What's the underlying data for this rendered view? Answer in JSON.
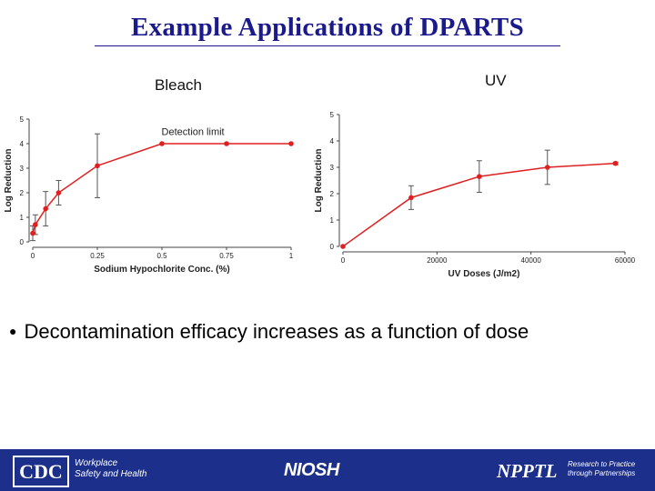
{
  "title": "Example Applications of DPARTS",
  "panels": {
    "bleach_label": "Bleach",
    "uv_label": "UV"
  },
  "bullet": "Decontamination efficacy increases as a function of dose",
  "footer": {
    "cdc": "CDC",
    "cdc_sub_line1": "Workplace",
    "cdc_sub_line2": "Safety and Health",
    "niosh": "NIOSH",
    "npptl": "NPPTL",
    "npptl_sub_line1": "Research to Practice",
    "npptl_sub_line2": "through Partnerships"
  },
  "colors": {
    "title": "#1a1a8c",
    "series": "#e02020",
    "errorbar": "#555555",
    "footer_bg": "#1c2f8a"
  },
  "chart_data": [
    {
      "type": "line",
      "title": "Bleach",
      "xlabel": "Sodium Hypochlorite Conc. (%)",
      "ylabel": "Log Reduction",
      "xlim": [
        0,
        1
      ],
      "ylim": [
        0,
        5
      ],
      "xticks": [
        0,
        0.25,
        0.5,
        0.75,
        1
      ],
      "xtick_labels": [
        "0",
        "0.25",
        "0.5",
        "0.75",
        "1"
      ],
      "yticks": [
        0,
        1,
        2,
        3,
        4,
        5
      ],
      "grid": false,
      "annotation": "Detection limit",
      "series": [
        {
          "x": [
            0,
            0.01,
            0.05,
            0.1,
            0.25,
            0.5,
            0.75,
            1
          ],
          "y": [
            0.35,
            0.7,
            1.35,
            2.0,
            3.1,
            4.0,
            4.0,
            4.0
          ],
          "err": [
            0.3,
            0.4,
            0.7,
            0.5,
            1.3,
            0,
            0,
            0
          ]
        }
      ]
    },
    {
      "type": "line",
      "title": "UV",
      "xlabel": "UV Doses (J/m2)",
      "ylabel": "Log Reduction",
      "xlim": [
        0,
        60000
      ],
      "ylim": [
        0,
        5
      ],
      "xticks": [
        0,
        20000,
        40000,
        60000
      ],
      "xtick_labels": [
        "0",
        "20000",
        "40000",
        "60000"
      ],
      "yticks": [
        0,
        1,
        2,
        3,
        4,
        5
      ],
      "grid": false,
      "series": [
        {
          "x": [
            0,
            14500,
            29000,
            43500,
            58000
          ],
          "y": [
            0,
            1.85,
            2.65,
            3.0,
            3.15
          ],
          "err": [
            0,
            0.45,
            0.6,
            0.65,
            0.05
          ]
        }
      ]
    }
  ]
}
